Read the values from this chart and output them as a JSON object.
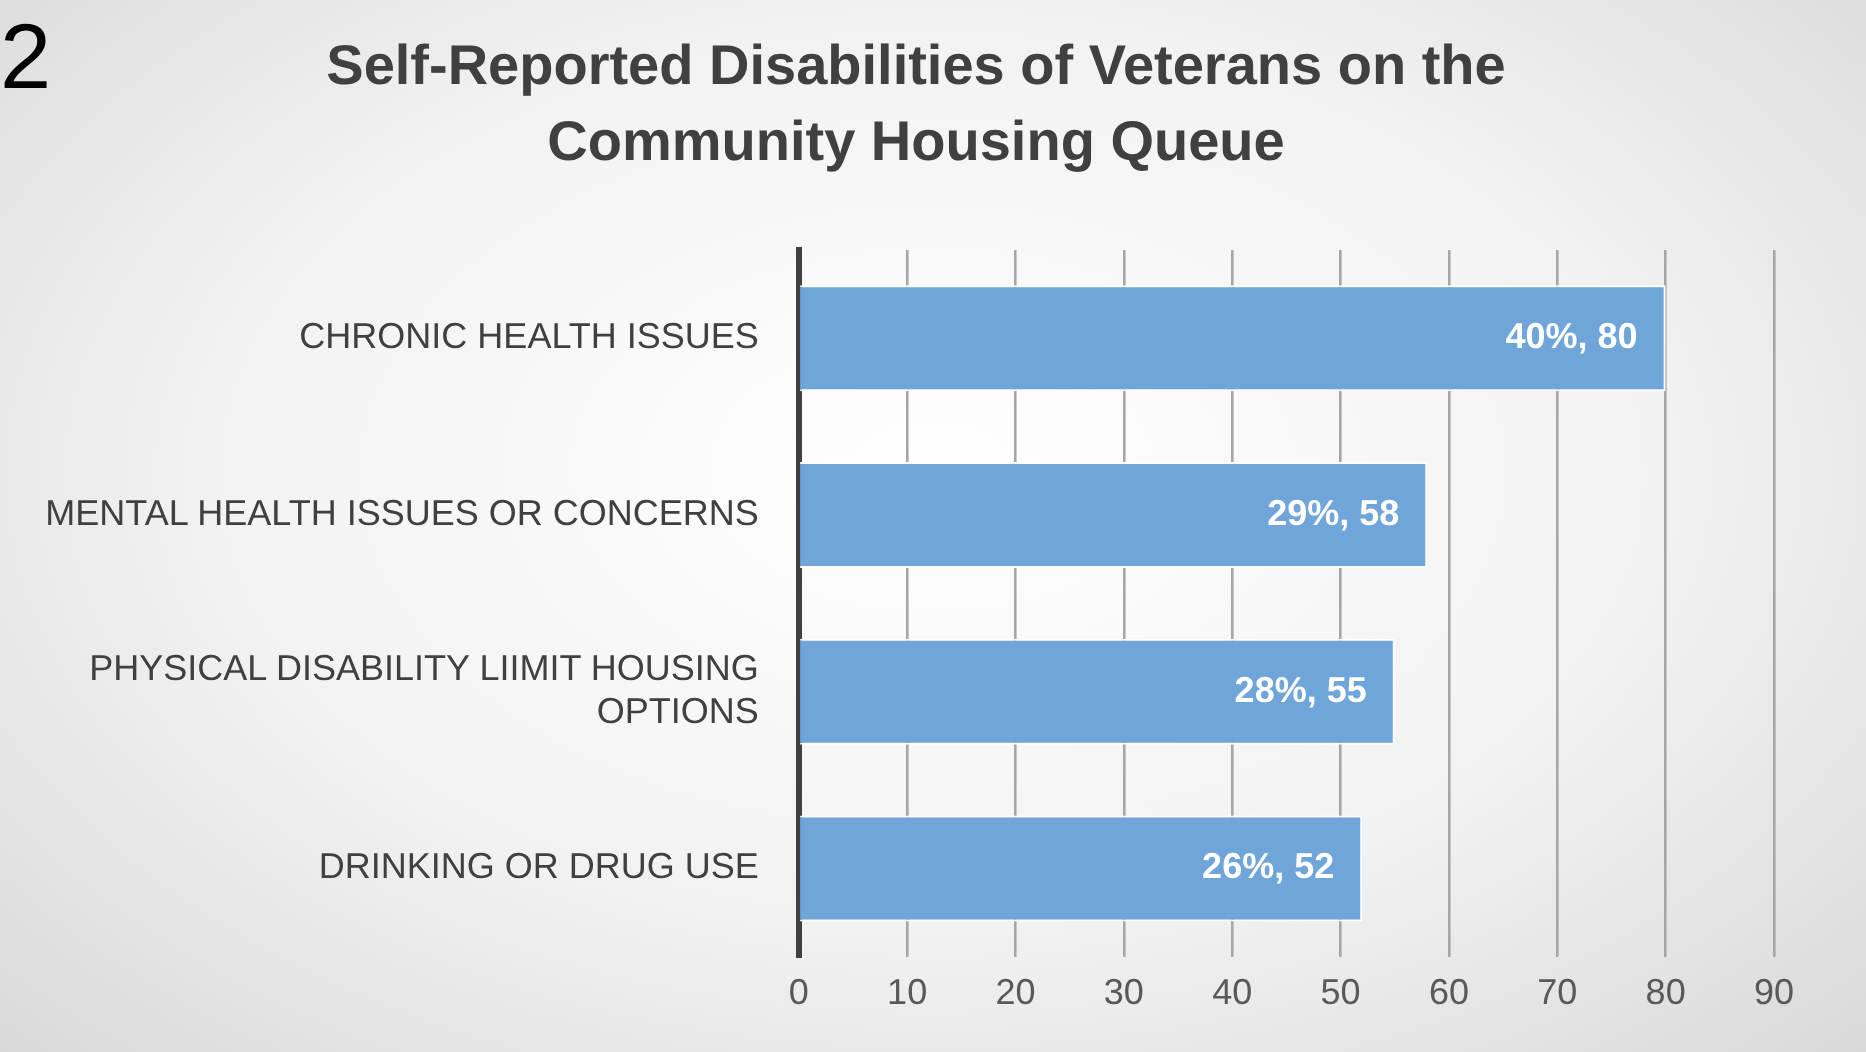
{
  "chart_data": {
    "type": "bar",
    "orientation": "horizontal",
    "title": "Self-Reported Disabilities of Veterans on the Community Housing Queue",
    "categories": [
      "CHRONIC HEALTH ISSUES",
      "MENTAL HEALTH ISSUES OR CONCERNS",
      "PHYSICAL DISABILITY LIIMIT HOUSING OPTIONS",
      "DRINKING OR DRUG USE"
    ],
    "values": [
      80,
      58,
      55,
      52
    ],
    "value_labels": [
      "40%, 80",
      "29%, 58",
      "28%, 55",
      "26%, 52"
    ],
    "color": "#6fa5d9",
    "xlim": [
      0,
      90
    ],
    "xticks": [
      0,
      10,
      20,
      30,
      40,
      50,
      60,
      70,
      80,
      90
    ],
    "grid": "x",
    "legend": false,
    "annotations": [
      "2"
    ]
  }
}
